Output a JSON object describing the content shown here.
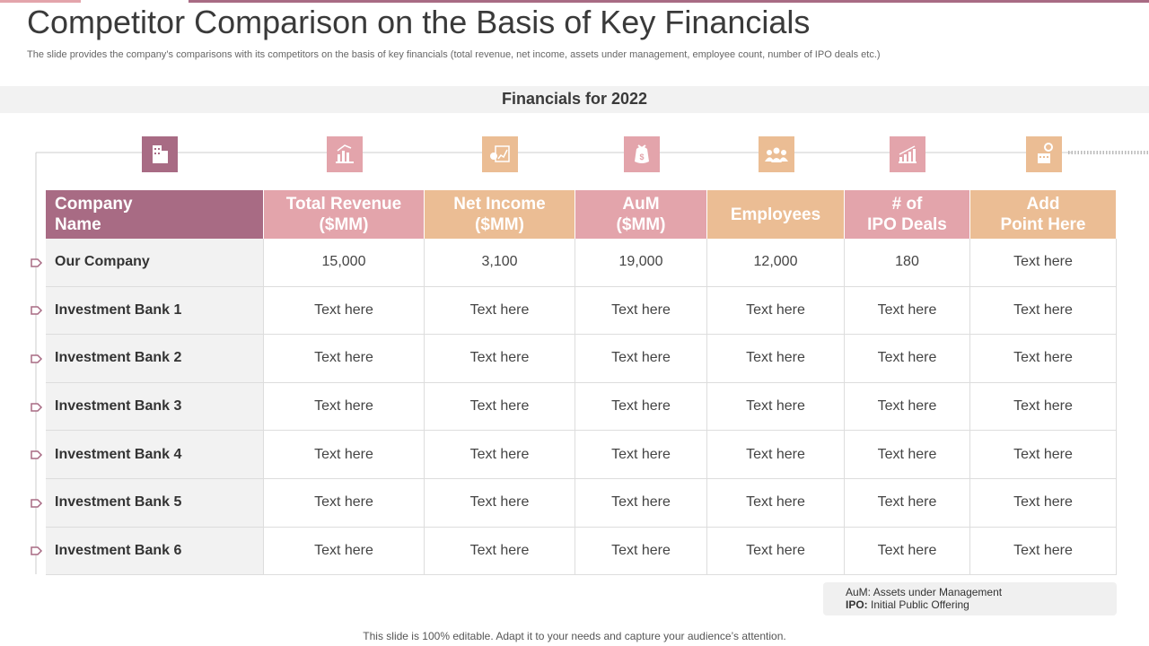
{
  "title": "Competitor Comparison on the Basis of Key Financials",
  "subtitle": "The slide provides the company’s comparisons with its competitors on the basis of key financials (total revenue, net income, assets under management, employee count, number of IPO deals etc.)",
  "section_title": "Financials for 2022",
  "table": {
    "headers": [
      "Company\nName",
      "Total Revenue\n($MM)",
      "Net Income\n($MM)",
      "AuM\n($MM)",
      "Employees",
      "# of\nIPO Deals",
      "Add\nPoint Here"
    ],
    "rows": [
      [
        "Our Company",
        "15,000",
        "3,100",
        "19,000",
        "12,000",
        "180",
        "Text here"
      ],
      [
        "Investment Bank 1",
        "Text here",
        "Text here",
        "Text here",
        "Text here",
        "Text here",
        "Text here"
      ],
      [
        "Investment Bank 2",
        "Text here",
        "Text here",
        "Text here",
        "Text here",
        "Text here",
        "Text here"
      ],
      [
        "Investment Bank 3",
        "Text here",
        "Text here",
        "Text here",
        "Text here",
        "Text here",
        "Text here"
      ],
      [
        "Investment Bank 4",
        "Text here",
        "Text here",
        "Text here",
        "Text here",
        "Text here",
        "Text here"
      ],
      [
        "Investment Bank 5",
        "Text here",
        "Text here",
        "Text here",
        "Text here",
        "Text here",
        "Text here"
      ],
      [
        "Investment Bank 6",
        "Text here",
        "Text here",
        "Text here",
        "Text here",
        "Text here",
        "Text here"
      ]
    ]
  },
  "notes": [
    {
      "term": "AuM:",
      "definition": "Assets under Management"
    },
    {
      "term": "IPO:",
      "definition": "Initial Public Offering"
    }
  ],
  "footer": "This slide is 100% editable. Adapt it to your needs and capture your audience’s attention."
}
